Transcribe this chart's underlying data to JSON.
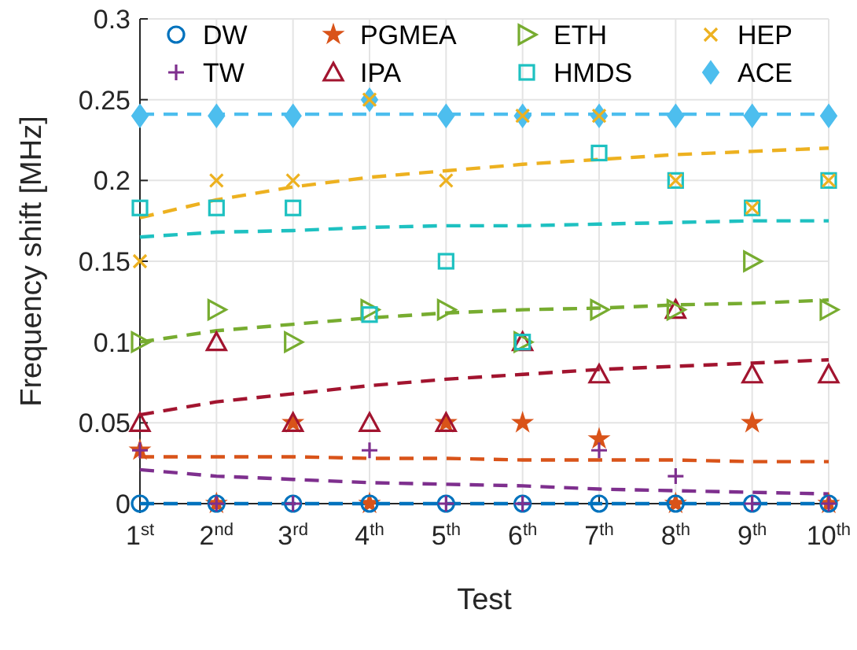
{
  "chart_data": {
    "type": "scatter",
    "xlabel": "Test",
    "ylabel": "Frequency shift [MHz]",
    "categories": [
      "1$^{st}$",
      "2$^{nd}$",
      "3$^{rd}$",
      "4$^{th}$",
      "5$^{th}$",
      "6$^{th}$",
      "7$^{th}$",
      "8$^{th}$",
      "9$^{th}$",
      "10$^{th}$"
    ],
    "ylim": [
      0,
      0.3
    ],
    "yticks": [
      0,
      0.05,
      0.1,
      0.15,
      0.2,
      0.25,
      0.3
    ],
    "grid": true,
    "legend": "top",
    "series": [
      {
        "name": "DW",
        "color": "#0072bd",
        "marker": "circle",
        "values": [
          0,
          0,
          0,
          0,
          0,
          0,
          0,
          0,
          0,
          0
        ]
      },
      {
        "name": "TW",
        "color": "#7e2f8e",
        "marker": "cross",
        "values": [
          0.033,
          0,
          0,
          0.033,
          0,
          0,
          0.033,
          0.017,
          0,
          0
        ]
      },
      {
        "name": "PGMEA",
        "color": "#d95319",
        "marker": "star",
        "values": [
          0.033,
          0,
          0.05,
          0,
          0.05,
          0.05,
          0.04,
          0,
          0.05,
          0
        ]
      },
      {
        "name": "IPA",
        "color": "#a2142f",
        "marker": "triangle",
        "values": [
          0.05,
          0.1,
          0.05,
          0.05,
          0.05,
          0.1,
          0.08,
          0.12,
          0.08,
          0.08
        ]
      },
      {
        "name": "ETH",
        "color": "#77ac30",
        "marker": "triangle-right",
        "values": [
          0.1,
          0.12,
          0.1,
          0.12,
          0.12,
          0.1,
          0.12,
          0.12,
          0.15,
          0.12
        ]
      },
      {
        "name": "HMDS",
        "color": "#1ec1c1",
        "marker": "square",
        "values": [
          0.183,
          0.183,
          0.183,
          0.117,
          0.15,
          0.1,
          0.217,
          0.2,
          0.183,
          0.2
        ]
      },
      {
        "name": "HEP",
        "color": "#edb120",
        "marker": "x",
        "values": [
          0.15,
          0.2,
          0.2,
          0.25,
          0.2,
          0.24,
          0.24,
          0.2,
          0.183,
          0.2
        ]
      },
      {
        "name": "ACE",
        "color": "#4dbeee",
        "marker": "diamond",
        "values": [
          0.24,
          0.24,
          0.24,
          0.25,
          0.24,
          0.24,
          0.24,
          0.24,
          0.24,
          0.24
        ]
      },
      {
        "type": "line",
        "color": "#0072bd",
        "line_style": "dashed",
        "marker": "none",
        "values": [
          0,
          0,
          0,
          0,
          0,
          0,
          0,
          0,
          0,
          0
        ]
      },
      {
        "type": "line",
        "color": "#7e2f8e",
        "line_style": "dashed",
        "marker": "none",
        "values": [
          0.021,
          0.017,
          0.015,
          0.013,
          0.012,
          0.011,
          0.009,
          0.008,
          0.007,
          0.006
        ]
      },
      {
        "type": "line",
        "color": "#d95319",
        "line_style": "dashed",
        "marker": "none",
        "values": [
          0.029,
          0.029,
          0.029,
          0.028,
          0.028,
          0.027,
          0.027,
          0.027,
          0.026,
          0.026
        ]
      },
      {
        "type": "line",
        "color": "#a2142f",
        "line_style": "dashed",
        "marker": "none",
        "values": [
          0.055,
          0.063,
          0.068,
          0.073,
          0.077,
          0.08,
          0.083,
          0.085,
          0.087,
          0.089
        ]
      },
      {
        "type": "line",
        "color": "#77ac30",
        "line_style": "dashed",
        "marker": "none",
        "values": [
          0.1,
          0.107,
          0.111,
          0.115,
          0.118,
          0.12,
          0.121,
          0.123,
          0.124,
          0.126
        ]
      },
      {
        "type": "line",
        "color": "#1ec1c1",
        "line_style": "dashed",
        "marker": "none",
        "values": [
          0.165,
          0.168,
          0.169,
          0.171,
          0.172,
          0.172,
          0.173,
          0.174,
          0.175,
          0.175
        ]
      },
      {
        "type": "line",
        "color": "#edb120",
        "line_style": "dashed",
        "marker": "none",
        "values": [
          0.177,
          0.188,
          0.196,
          0.202,
          0.206,
          0.21,
          0.213,
          0.216,
          0.218,
          0.22
        ]
      },
      {
        "type": "line",
        "color": "#4dbeee",
        "line_style": "dashed",
        "marker": "none",
        "values": [
          0.241,
          0.241,
          0.241,
          0.241,
          0.241,
          0.241,
          0.241,
          0.241,
          0.241,
          0.241
        ]
      }
    ]
  }
}
